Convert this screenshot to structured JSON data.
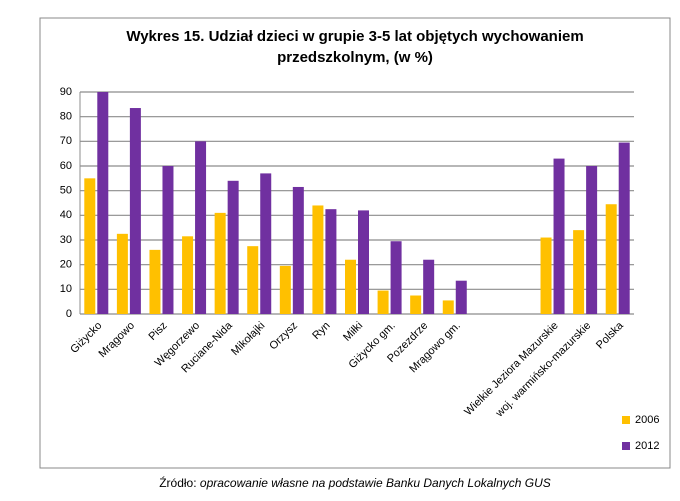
{
  "chart_data": {
    "type": "bar",
    "title": [
      "Wykres 15. Udział dzieci w grupie 3-5 lat objętych wychowaniem",
      "przedszkolnym, (w %)"
    ],
    "categories": [
      "Giżycko",
      "Mrągowo",
      "Pisz",
      "Węgorzewo",
      "Ruciane-Nida",
      "Mikołajki",
      "Orzysz",
      "Ryn",
      "Miłki",
      "Giżycko gm.",
      "Pozezdrze",
      "Mrągowo gm.",
      null,
      null,
      "Wielkie Jeziora Mazurskie",
      "woj. warmińsko-mazurskie",
      "Polska"
    ],
    "series": [
      {
        "name": "2006",
        "color": "#ffc000",
        "values": [
          55,
          32.5,
          26,
          31.5,
          41,
          27.5,
          19.5,
          44,
          22,
          9.5,
          7.5,
          5.5,
          null,
          null,
          31,
          34,
          44.5
        ]
      },
      {
        "name": "2012",
        "color": "#7030a0",
        "values": [
          90,
          83.5,
          60,
          70,
          54,
          57,
          51.5,
          42.5,
          42,
          29.5,
          22,
          13.5,
          null,
          null,
          63,
          60,
          69.5
        ]
      }
    ],
    "ylim": [
      0,
      90
    ],
    "yticks": [
      0,
      10,
      20,
      30,
      40,
      50,
      60,
      70,
      80,
      90
    ],
    "grid": true,
    "legend": "bottom-right",
    "source_label": "Źródło:",
    "source_text": "opracowanie własne na podstawie Banku Danych Lokalnych GUS"
  }
}
